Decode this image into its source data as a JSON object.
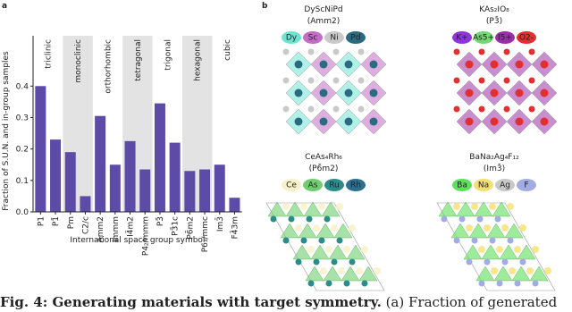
{
  "panel_a": {
    "label": "a"
  },
  "chart_data": {
    "type": "bar",
    "color": "#5c4ca8",
    "shade_color": "#e3e3e3",
    "ylabel": "Fraction of S.U.N. and in-group samples",
    "xlabel": "International space group symbol",
    "ylim": [
      0,
      0.56
    ],
    "yticks": [
      0.0,
      0.1,
      0.2,
      0.3,
      0.4
    ],
    "groups": [
      {
        "label": "triclinic",
        "shaded": false,
        "categories": [
          "P1",
          "P1̄"
        ],
        "values": [
          0.4,
          0.23
        ]
      },
      {
        "label": "monoclinic",
        "shaded": true,
        "categories": [
          "Pm",
          "C2/c"
        ],
        "values": [
          0.19,
          0.05
        ]
      },
      {
        "label": "orthorhombic",
        "shaded": false,
        "categories": [
          "Amm2",
          "Immm"
        ],
        "values": [
          0.305,
          0.15
        ]
      },
      {
        "label": "tetragonal",
        "shaded": true,
        "categories": [
          "I4̄m2",
          "P4₂/mmm"
        ],
        "values": [
          0.225,
          0.135
        ]
      },
      {
        "label": "trigonal",
        "shaded": false,
        "categories": [
          "P3̄",
          "P3̄1c"
        ],
        "values": [
          0.345,
          0.22
        ]
      },
      {
        "label": "hexagonal",
        "shaded": true,
        "categories": [
          "P6̄m2",
          "P6₃/mmc"
        ],
        "values": [
          0.13,
          0.135
        ]
      },
      {
        "label": "cubic",
        "shaded": false,
        "categories": [
          "Im3̄",
          "F4̄3m"
        ],
        "values": [
          0.15,
          0.045
        ]
      }
    ]
  },
  "panel_b": {
    "label": "b",
    "structures": [
      {
        "formula": "DyScNiPd",
        "group": "(Amm2)",
        "elements": [
          {
            "label": "Dy",
            "color": "#6fe3d2"
          },
          {
            "label": "Sc",
            "color": "#c46cc8"
          },
          {
            "label": "Ni",
            "color": "#c9c9c9"
          },
          {
            "label": "Pd",
            "color": "#2b6b82"
          }
        ]
      },
      {
        "formula": "KAs₂IO₈",
        "group": "(P3̄)",
        "elements": [
          {
            "label": "K+",
            "color": "#8e35d6"
          },
          {
            "label": "As5+",
            "color": "#72d872"
          },
          {
            "label": "I5+",
            "color": "#9a2fa8"
          },
          {
            "label": "O2-",
            "color": "#e23030"
          }
        ]
      },
      {
        "formula": "CeAs₄Rh₆",
        "group": "(P6̄m2)",
        "elements": [
          {
            "label": "Ce",
            "color": "#f6f1c6"
          },
          {
            "label": "As",
            "color": "#6fcf6f"
          },
          {
            "label": "Ru",
            "color": "#2b8c8c"
          },
          {
            "label": "Rh",
            "color": "#2b7090"
          }
        ]
      },
      {
        "formula": "BaNa₂Ag₄F₁₂",
        "group": "(Im3̄)",
        "elements": [
          {
            "label": "Ba",
            "color": "#5ae05a"
          },
          {
            "label": "Na",
            "color": "#f4e070"
          },
          {
            "label": "Ag",
            "color": "#c8c8c8"
          },
          {
            "label": "F",
            "color": "#a3abe3"
          }
        ]
      }
    ]
  },
  "caption": {
    "label": "Fig. 4: Generating materials with target symmetry.",
    "text": "(a) Fraction of generated"
  }
}
